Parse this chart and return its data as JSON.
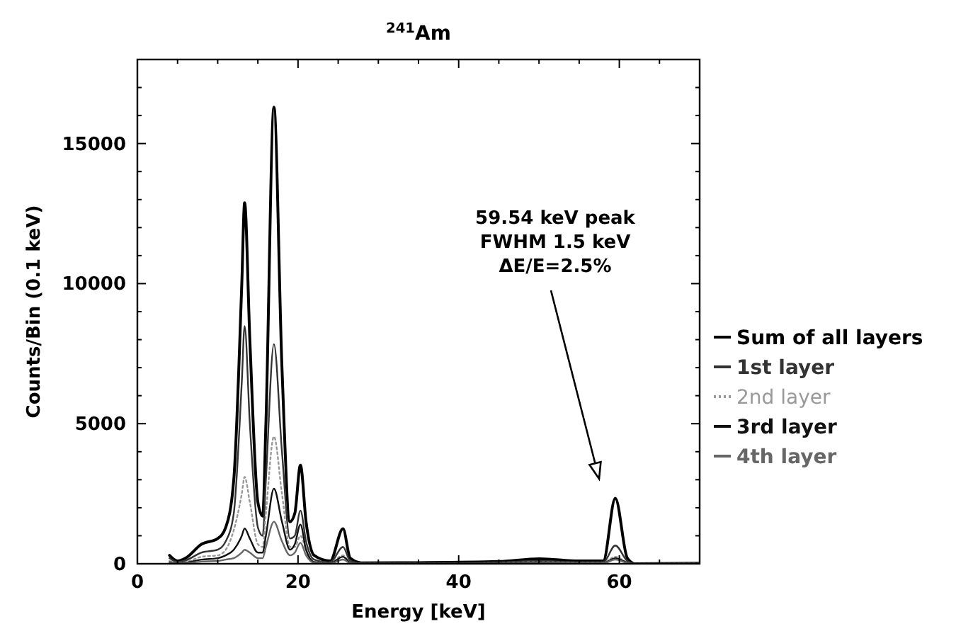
{
  "chart_data": {
    "type": "line",
    "title": "$^{241}$Am",
    "xlabel": "Energy [keV]",
    "ylabel": "Counts/Bin (0.1 keV)",
    "x": [
      4,
      5,
      6,
      8,
      10,
      11,
      12,
      13,
      13.35,
      14,
      15,
      15.6,
      16,
      17,
      18,
      19,
      19.6,
      20.3,
      21,
      22,
      24,
      25.6,
      26.5,
      28,
      35,
      45,
      50,
      55,
      58,
      59.5,
      61,
      62,
      70
    ],
    "series": [
      {
        "name": "Sum of all layers",
        "color": "#000000",
        "line_style": "solid",
        "values": [
          300,
          100,
          200,
          700,
          900,
          1300,
          3000,
          10000,
          12890,
          8000,
          2200,
          1700,
          5000,
          16300,
          7000,
          1500,
          1800,
          3520,
          1500,
          300,
          100,
          1250,
          200,
          30,
          40,
          80,
          180,
          100,
          100,
          2340,
          200,
          0,
          20
        ]
      },
      {
        "name": "1st layer",
        "color": "#333333",
        "line_style": "solid",
        "values": [
          200,
          60,
          120,
          400,
          500,
          800,
          1800,
          6500,
          8480,
          5000,
          1300,
          1000,
          3000,
          7840,
          4000,
          900,
          1000,
          1900,
          800,
          150,
          50,
          600,
          100,
          20,
          20,
          50,
          100,
          60,
          60,
          650,
          100,
          0,
          10
        ]
      },
      {
        "name": "2nd layer",
        "color": "#999999",
        "line_style": "dotted",
        "values": [
          100,
          30,
          60,
          250,
          300,
          500,
          1200,
          2500,
          3100,
          2200,
          700,
          600,
          1800,
          4540,
          2500,
          600,
          600,
          1000,
          500,
          80,
          30,
          300,
          50,
          10,
          10,
          30,
          60,
          40,
          40,
          250,
          50,
          0,
          10
        ]
      },
      {
        "name": "3rd layer",
        "color": "#111111",
        "line_style": "solid",
        "values": [
          50,
          20,
          40,
          150,
          200,
          300,
          500,
          1000,
          1260,
          900,
          400,
          400,
          1000,
          2680,
          1500,
          500,
          700,
          1400,
          500,
          60,
          20,
          250,
          40,
          0,
          10,
          20,
          40,
          30,
          30,
          200,
          40,
          0,
          0
        ]
      },
      {
        "name": "4th layer",
        "color": "#666666",
        "line_style": "solid",
        "values": [
          30,
          10,
          20,
          80,
          100,
          150,
          200,
          400,
          500,
          400,
          200,
          200,
          600,
          1500,
          800,
          300,
          400,
          750,
          300,
          40,
          10,
          150,
          20,
          0,
          0,
          10,
          20,
          20,
          20,
          150,
          30,
          0,
          0
        ]
      }
    ],
    "xlim": [
      0,
      70
    ],
    "ylim": [
      0,
      18000
    ],
    "xticks": [
      0,
      {
        "value": 5,
        "label": null
      },
      {
        "value": 10,
        "label": null
      },
      {
        "value": 15,
        "label": null
      },
      20,
      {
        "value": 25,
        "label": null
      },
      {
        "value": 30,
        "label": null
      },
      {
        "value": 35,
        "label": null
      },
      40,
      {
        "value": 45,
        "label": null
      },
      {
        "value": 50,
        "label": null
      },
      {
        "value": 55,
        "label": null
      },
      60,
      {
        "value": 65,
        "label": null
      },
      {
        "value": 70,
        "label": null
      }
    ],
    "yticks": [
      0,
      {
        "value": 1000,
        "label": null
      },
      {
        "value": 2000,
        "label": null
      },
      {
        "value": 3000,
        "label": null
      },
      {
        "value": 4000,
        "label": null
      },
      5000,
      {
        "value": 6000,
        "label": null
      },
      {
        "value": 7000,
        "label": null
      },
      {
        "value": 8000,
        "label": null
      },
      {
        "value": 9000,
        "label": null
      },
      10000,
      {
        "value": 11000,
        "label": null
      },
      {
        "value": 12000,
        "label": null
      },
      {
        "value": 13000,
        "label": null
      },
      {
        "value": 14000,
        "label": null
      },
      15000,
      {
        "value": 16000,
        "label": null
      },
      {
        "value": 17000,
        "label": null
      },
      {
        "value": 18000,
        "label": null
      }
    ],
    "annotations": [
      "59.54 keV peak\nFWHM 1.5 keV\nΔE/E=2.5%"
    ],
    "legend": "right",
    "grid": false,
    "marker": "none"
  }
}
